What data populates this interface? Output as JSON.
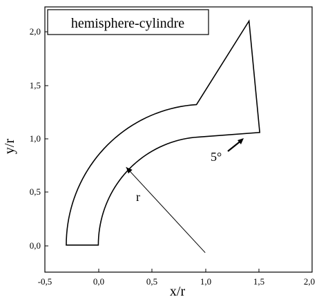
{
  "legend": {
    "label": "hemisphere-cylindre"
  },
  "axes": {
    "xlabel": "x/r",
    "ylabel": "y/r",
    "xlim": [
      -0.5,
      2.0
    ],
    "ylim": [
      -0.25,
      2.2
    ],
    "xticks": [
      "-0,5",
      "0,0",
      "0,5",
      "1,0",
      "1,5",
      "2,0"
    ],
    "yticks": [
      "0,0",
      "0,5",
      "1,0",
      "1,5",
      "2,0"
    ]
  },
  "annotations": {
    "radius_label": "r",
    "angle_label": "5°"
  },
  "shape": {
    "inner_radius": 1.0,
    "outer_radius": 1.3,
    "inner_end": [
      1.51,
      1.04
    ],
    "outer_end": [
      1.41,
      2.07
    ],
    "radius_arrow_from": [
      1.0,
      -0.07
    ],
    "radius_arrow_to": [
      0.26,
      0.72
    ]
  }
}
